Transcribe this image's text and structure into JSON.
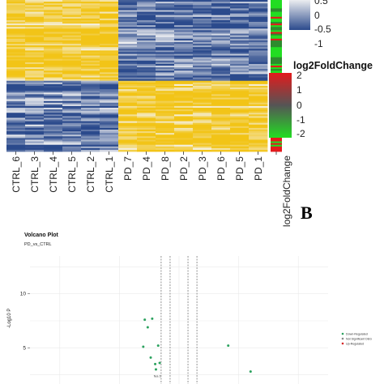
{
  "heatmap": {
    "columns": [
      "CTRL_6",
      "CTRL_3",
      "CTRL_4",
      "CTRL_5",
      "CTRL_2",
      "CTRL_1",
      "PD_7",
      "PD_4",
      "PD_8",
      "PD_2",
      "PD_3",
      "PD_6",
      "PD_5",
      "PD_1"
    ],
    "annotation_label": "log2FoldChange",
    "colors": {
      "low": "#2b4a8c",
      "mid": "#f4f4f4",
      "high": "#f2c417"
    },
    "scale_legend": {
      "ticks": [
        "0.5",
        "0",
        "-0.5",
        "-1"
      ]
    },
    "lfc_legend": {
      "title": "log2FoldChange",
      "ticks": [
        "2",
        "1",
        "0",
        "-1",
        "-2"
      ],
      "colors": {
        "high": "#e31a1c",
        "mid": "#555555",
        "low": "#22dd22"
      }
    }
  },
  "panel_label": "B",
  "chart_data": {
    "type": "scatter",
    "title": "Volcano Plot",
    "subtitle": "PD_vs_CTRL",
    "ylabel": "-Log10 P",
    "y_ticks": [
      "10",
      "5"
    ],
    "ylim": [
      1.5,
      13.5
    ],
    "xlim": [
      -10,
      10
    ],
    "vlines": [
      -1.2,
      -0.6,
      0.6,
      1.2
    ],
    "grid": true,
    "legend": {
      "placement": "right",
      "entries": [
        {
          "label": "Down-Regulated",
          "color": "#2ca25f"
        },
        {
          "label": "Not Significant DEG",
          "color": "#888888"
        },
        {
          "label": "Up-Regulated",
          "color": "#d62728"
        }
      ]
    },
    "point_color": "#2ca25f",
    "points": [
      {
        "x": -2.3,
        "y": 7.6
      },
      {
        "x": -1.8,
        "y": 7.7
      },
      {
        "x": -2.1,
        "y": 6.9
      },
      {
        "x": -2.4,
        "y": 5.1
      },
      {
        "x": -1.4,
        "y": 5.2
      },
      {
        "x": -1.9,
        "y": 4.1
      },
      {
        "x": -1.6,
        "y": 3.5
      },
      {
        "x": -1.3,
        "y": 3.6
      },
      {
        "x": -1.55,
        "y": 3.0
      },
      {
        "x": 3.3,
        "y": 5.2
      },
      {
        "x": 4.8,
        "y": 2.8
      }
    ],
    "point_labels": [
      {
        "x": -1.45,
        "y": 2.3,
        "text": "fea 1"
      }
    ]
  }
}
